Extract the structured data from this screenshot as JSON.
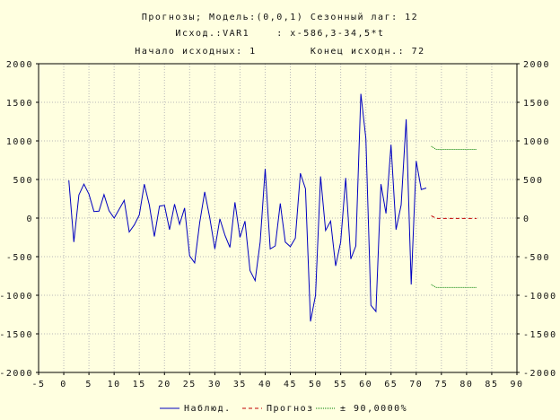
{
  "chart_data": {
    "type": "line",
    "title_lines": [
      "Прогнозы; Модель:(0,0,1) Сезонный лаг: 12",
      "Исход.:VAR1    : x-586,3-34,5*t",
      "Начало исходных: 1        Конец исходн.: 72"
    ],
    "xlim": [
      -5,
      90
    ],
    "ylim": [
      -2000,
      2000
    ],
    "x_ticks": [
      -5,
      0,
      5,
      10,
      15,
      20,
      25,
      30,
      35,
      40,
      45,
      50,
      55,
      60,
      65,
      70,
      75,
      80,
      85,
      90
    ],
    "y_ticks": [
      -2000,
      -1500,
      -1000,
      -500,
      0,
      500,
      1000,
      1500,
      2000
    ],
    "y_tick_labels": [
      "-2000",
      "-1500",
      "-1000",
      "-500",
      "0",
      "500",
      "1000",
      "1500",
      "2000"
    ],
    "grid": true,
    "legend_position": "bottom",
    "series": [
      {
        "name": "Наблюд.",
        "color": "#0000c0",
        "style": "solid",
        "x": [
          1,
          2,
          3,
          4,
          5,
          6,
          7,
          8,
          9,
          10,
          11,
          12,
          13,
          14,
          15,
          16,
          17,
          18,
          19,
          20,
          21,
          22,
          23,
          24,
          25,
          26,
          27,
          28,
          29,
          30,
          31,
          32,
          33,
          34,
          35,
          36,
          37,
          38,
          39,
          40,
          41,
          42,
          43,
          44,
          45,
          46,
          47,
          48,
          49,
          50,
          51,
          52,
          53,
          54,
          55,
          56,
          57,
          58,
          59,
          60,
          61,
          62,
          63,
          64,
          65,
          66,
          67,
          68,
          69,
          70,
          71,
          72
        ],
        "values": [
          490,
          -310,
          300,
          440,
          310,
          85,
          90,
          305,
          95,
          0,
          115,
          230,
          -180,
          -90,
          40,
          440,
          170,
          -240,
          155,
          165,
          -150,
          180,
          -80,
          130,
          -490,
          -580,
          -60,
          340,
          0,
          -400,
          -10,
          -220,
          -380,
          205,
          -250,
          -40,
          -680,
          -810,
          -310,
          640,
          -400,
          -360,
          190,
          -310,
          -370,
          -260,
          580,
          380,
          -1340,
          -1000,
          540,
          -160,
          -40,
          -620,
          -310,
          520,
          -530,
          -360,
          1610,
          1030,
          -1130,
          -1210,
          440,
          60,
          950,
          -150,
          170,
          1280,
          -860,
          740,
          370,
          390
        ]
      },
      {
        "name": "Прогноз",
        "color": "#c00000",
        "style": "dashed",
        "x": [
          73,
          74,
          75,
          76,
          77,
          78,
          79,
          80,
          81,
          82
        ],
        "values": [
          30,
          -5,
          -5,
          -5,
          -5,
          -5,
          -5,
          -5,
          -5,
          -5
        ]
      },
      {
        "name": "± 90,0000%",
        "color": "#008000",
        "style": "dotted",
        "x": [
          73,
          74,
          75,
          76,
          77,
          78,
          79,
          80,
          81,
          82
        ],
        "upper": [
          930,
          890,
          890,
          890,
          890,
          890,
          890,
          890,
          890,
          890
        ],
        "lower": [
          -860,
          -900,
          -900,
          -900,
          -900,
          -900,
          -900,
          -900,
          -900,
          -900
        ]
      }
    ]
  }
}
